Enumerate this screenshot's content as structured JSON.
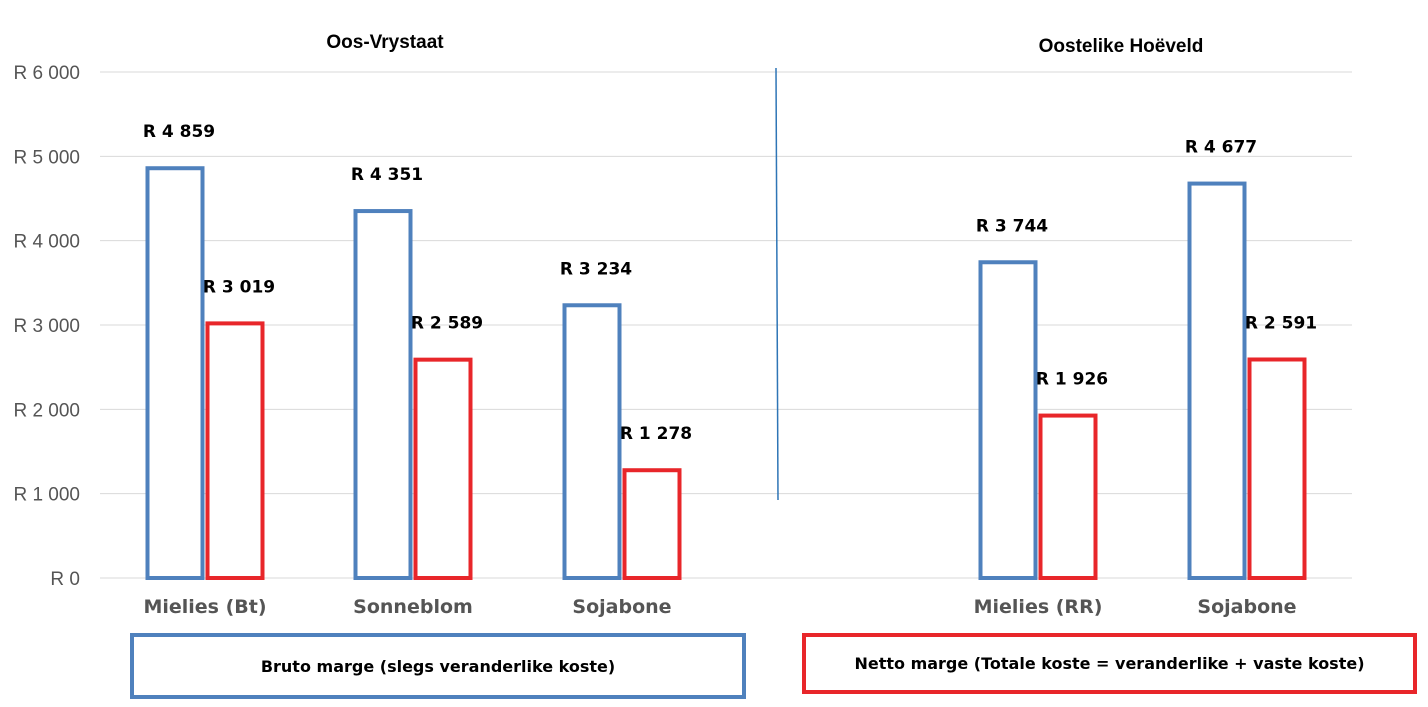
{
  "chart_data": {
    "type": "bar",
    "currency_prefix": "R",
    "ylim": [
      0,
      6000
    ],
    "yticks": [
      0,
      1000,
      2000,
      3000,
      4000,
      5000,
      6000
    ],
    "ytick_labels": [
      "R  0",
      "R 1 000",
      "R 2 000",
      "R 3 000",
      "R 4 000",
      "R 5 000",
      "R 6 000"
    ],
    "grid": true,
    "colors": {
      "bruto": "#4F81BD",
      "netto": "#E8262A",
      "grid": "#d9d9d9",
      "divider": "#2E75B6"
    },
    "panels": [
      {
        "title": "Oos-Vrystaat",
        "categories": [
          "Mielies (Bt)",
          "Sonneblom",
          "Sojabone"
        ],
        "series": [
          {
            "name": "Bruto marge (slegs veranderlike koste)",
            "values": [
              4859,
              4351,
              3234
            ],
            "labels": [
              "R 4 859",
              "R 4 351",
              "R 3 234"
            ]
          },
          {
            "name": "Netto marge (Totale koste = veranderlike + vaste koste)",
            "values": [
              3019,
              2589,
              1278
            ],
            "labels": [
              "R 3 019",
              "R 2 589",
              "R 1 278"
            ]
          }
        ]
      },
      {
        "title": "Oostelike Hoëveld",
        "categories": [
          "Mielies (RR)",
          "Sojabone"
        ],
        "series": [
          {
            "name": "Bruto marge (slegs veranderlike koste)",
            "values": [
              3744,
              4677
            ],
            "labels": [
              "R 3 744",
              "R 4 677"
            ]
          },
          {
            "name": "Netto marge (Totale koste = veranderlike + vaste koste)",
            "values": [
              1926,
              2591
            ],
            "labels": [
              "R 1 926",
              "R 2 591"
            ]
          }
        ]
      }
    ],
    "legend": {
      "bruto": "Bruto marge (slegs veranderlike koste)",
      "netto": "Netto marge (Totale koste = veranderlike + vaste koste)"
    }
  }
}
